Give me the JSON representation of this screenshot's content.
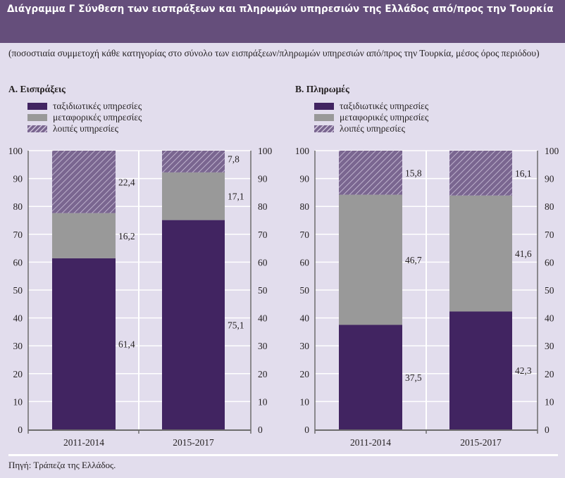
{
  "header": {
    "title": "Διάγραμμα Γ  Σύνθεση των εισπράξεων και πληρωμών υπηρεσιών της Ελλάδος από/προς την Τουρκία"
  },
  "subtitle": "(ποσοστιαία συμμετοχή κάθε κατηγορίας στο σύνολο των εισπράξεων/πληρωμών υπηρεσιών από/προς την Τουρκία, μέσος όρος περιόδου)",
  "legend": [
    {
      "label": "ταξιδιωτικές υπηρεσίες",
      "color": "#412461",
      "pattern": "solid"
    },
    {
      "label": "μεταφορικές υπηρεσίες",
      "color": "#999999",
      "pattern": "solid"
    },
    {
      "label": "λοιπές υπηρεσίες",
      "color": "#7a6690",
      "pattern": "hatched"
    }
  ],
  "source": "Πηγή: Τράπεζα της Ελλάδος.",
  "chart_data": [
    {
      "type": "bar",
      "stacked": true,
      "title": "Α. Εισπράξεις",
      "categories": [
        "2011-2014",
        "2015-2017"
      ],
      "series": [
        {
          "name": "ταξιδιωτικές υπηρεσίες",
          "values": [
            61.4,
            75.1
          ],
          "labels": [
            "61,4",
            "75,1"
          ]
        },
        {
          "name": "μεταφορικές υπηρεσίες",
          "values": [
            16.2,
            17.1
          ],
          "labels": [
            "16,2",
            "17,1"
          ]
        },
        {
          "name": "λοιπές υπηρεσίες",
          "values": [
            22.4,
            7.8
          ],
          "labels": [
            "22,4",
            "7,8"
          ]
        }
      ],
      "ylim": [
        0,
        100
      ],
      "yticks": [
        0,
        10,
        20,
        30,
        40,
        50,
        60,
        70,
        80,
        90,
        100
      ],
      "y_axes": "left-and-right",
      "grid": true,
      "legend_position": "top-left"
    },
    {
      "type": "bar",
      "stacked": true,
      "title": "Β. Πληρωμές",
      "categories": [
        "2011-2014",
        "2015-2017"
      ],
      "series": [
        {
          "name": "ταξιδιωτικές υπηρεσίες",
          "values": [
            37.5,
            42.3
          ],
          "labels": [
            "37,5",
            "42,3"
          ]
        },
        {
          "name": "μεταφορικές υπηρεσίες",
          "values": [
            46.7,
            41.6
          ],
          "labels": [
            "46,7",
            "41,6"
          ]
        },
        {
          "name": "λοιπές υπηρεσίες",
          "values": [
            15.8,
            16.1
          ],
          "labels": [
            "15,8",
            "16,1"
          ]
        }
      ],
      "ylim": [
        0,
        100
      ],
      "yticks": [
        0,
        10,
        20,
        30,
        40,
        50,
        60,
        70,
        80,
        90,
        100
      ],
      "y_axes": "left-and-right",
      "grid": true,
      "legend_position": "top-left"
    }
  ]
}
